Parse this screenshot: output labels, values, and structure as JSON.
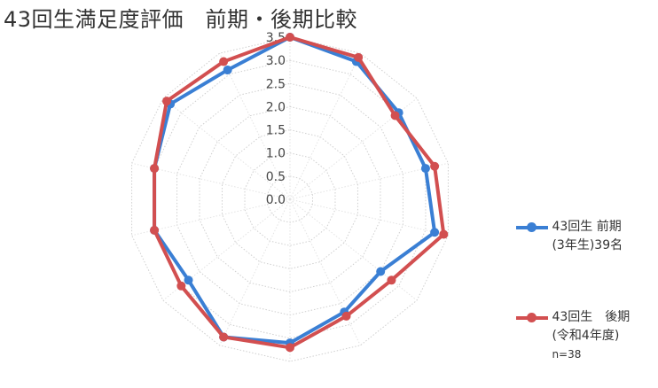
{
  "chart_data": {
    "type": "radar",
    "title": "43回生満足度評価　前期・後期比較",
    "rlim": [
      0,
      3.5
    ],
    "r_ticks": [
      "0.0",
      "0.5",
      "1.0",
      "1.5",
      "2.0",
      "2.5",
      "3.0",
      "3.5"
    ],
    "axes_count": 14,
    "grid": true,
    "legend_position": "right",
    "series": [
      {
        "name": "43回生 前期",
        "name_line2": "(3年生)39名",
        "color": "#3a7fd4",
        "values": [
          3.5,
          3.3,
          3.0,
          3.0,
          3.2,
          2.5,
          2.7,
          3.1,
          3.3,
          2.8,
          3.0,
          3.0,
          3.3,
          3.1
        ]
      },
      {
        "name": "43回生　後期",
        "name_line2": "(令和4年度)",
        "name_line3": "n=38",
        "color": "#d24f50",
        "values": [
          3.5,
          3.4,
          2.9,
          3.2,
          3.4,
          2.8,
          2.8,
          3.2,
          3.3,
          3.0,
          3.0,
          3.0,
          3.4,
          3.3
        ]
      }
    ]
  }
}
